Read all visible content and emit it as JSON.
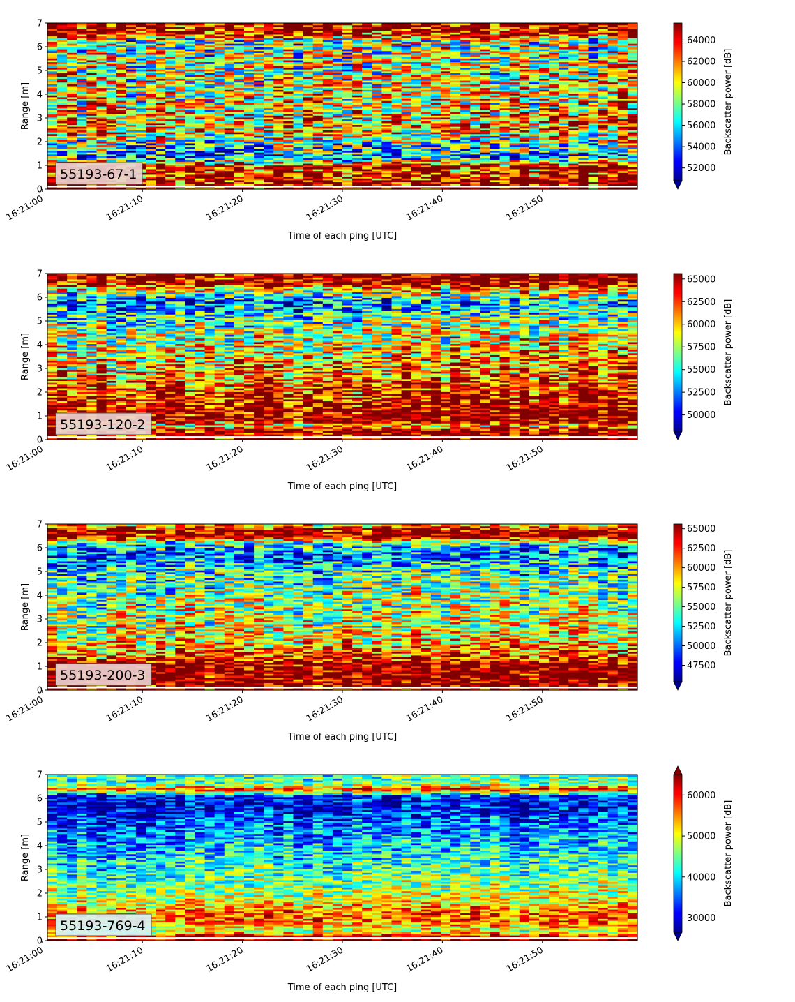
{
  "chart_data": [
    {
      "type": "heatmap",
      "label": "55193-67-1",
      "xlabel": "Time of each ping [UTC]",
      "ylabel": "Range [m]",
      "xticks": [
        "16:21:00",
        "16:21:10",
        "16:21:20",
        "16:21:30",
        "16:21:40",
        "16:21:50"
      ],
      "yticks": [
        "0",
        "1",
        "2",
        "3",
        "4",
        "5",
        "6",
        "7"
      ],
      "ylim": [
        0,
        7
      ],
      "colorbar": {
        "label": "Backscatter power [dB]",
        "vmin": 50800,
        "vmax": 65600,
        "ticks": [
          "52000",
          "54000",
          "56000",
          "58000",
          "60000",
          "62000",
          "64000"
        ],
        "extend": "min"
      },
      "profile": [
        {
          "y": 0.0,
          "v": 0.95
        },
        {
          "y": 0.3,
          "v": 0.98
        },
        {
          "y": 0.6,
          "v": 0.9
        },
        {
          "y": 1.0,
          "v": 0.85
        },
        {
          "y": 1.4,
          "v": 0.25
        },
        {
          "y": 1.8,
          "v": 0.4
        },
        {
          "y": 2.5,
          "v": 0.7
        },
        {
          "y": 3.5,
          "v": 0.62
        },
        {
          "y": 4.5,
          "v": 0.6
        },
        {
          "y": 5.5,
          "v": 0.55
        },
        {
          "y": 6.3,
          "v": 0.5
        },
        {
          "y": 6.5,
          "v": 0.9
        },
        {
          "y": 7.0,
          "v": 1.0
        }
      ],
      "noise": 0.38,
      "trend": 0.0,
      "label_bg": "#ead0d0"
    },
    {
      "type": "heatmap",
      "label": "55193-120-2",
      "xlabel": "Time of each ping [UTC]",
      "ylabel": "Range [m]",
      "xticks": [
        "16:21:00",
        "16:21:10",
        "16:21:20",
        "16:21:30",
        "16:21:40",
        "16:21:50"
      ],
      "yticks": [
        "0",
        "1",
        "2",
        "3",
        "4",
        "5",
        "6",
        "7"
      ],
      "ylim": [
        0,
        7
      ],
      "colorbar": {
        "label": "Backscatter power [dB]",
        "vmin": 48200,
        "vmax": 65600,
        "ticks": [
          "50000",
          "52500",
          "55000",
          "57500",
          "60000",
          "62500",
          "65000"
        ],
        "extend": "min"
      },
      "profile": [
        {
          "y": 0.0,
          "v": 0.95
        },
        {
          "y": 0.4,
          "v": 1.0
        },
        {
          "y": 0.6,
          "v": 0.55
        },
        {
          "y": 0.8,
          "v": 1.0
        },
        {
          "y": 1.3,
          "v": 0.95
        },
        {
          "y": 2.0,
          "v": 0.85
        },
        {
          "y": 3.0,
          "v": 0.7
        },
        {
          "y": 4.0,
          "v": 0.6
        },
        {
          "y": 5.0,
          "v": 0.45
        },
        {
          "y": 5.8,
          "v": 0.25
        },
        {
          "y": 6.3,
          "v": 0.6
        },
        {
          "y": 6.6,
          "v": 0.97
        },
        {
          "y": 7.0,
          "v": 1.0
        }
      ],
      "noise": 0.33,
      "trend": 0.08,
      "label_bg": "#ead0d0"
    },
    {
      "type": "heatmap",
      "label": "55193-200-3",
      "xlabel": "Time of each ping [UTC]",
      "ylabel": "Range [m]",
      "xticks": [
        "16:21:00",
        "16:21:10",
        "16:21:20",
        "16:21:30",
        "16:21:40",
        "16:21:50"
      ],
      "yticks": [
        "0",
        "1",
        "2",
        "3",
        "4",
        "5",
        "6",
        "7"
      ],
      "ylim": [
        0,
        7
      ],
      "colorbar": {
        "label": "Backscatter power [dB]",
        "vmin": 45400,
        "vmax": 65600,
        "ticks": [
          "47500",
          "50000",
          "52500",
          "55000",
          "57500",
          "60000",
          "62500",
          "65000"
        ],
        "extend": "min"
      },
      "profile": [
        {
          "y": 0.0,
          "v": 0.9
        },
        {
          "y": 0.3,
          "v": 1.0
        },
        {
          "y": 1.1,
          "v": 1.0
        },
        {
          "y": 1.4,
          "v": 0.8
        },
        {
          "y": 2.0,
          "v": 0.65
        },
        {
          "y": 3.0,
          "v": 0.55
        },
        {
          "y": 4.0,
          "v": 0.5
        },
        {
          "y": 5.0,
          "v": 0.4
        },
        {
          "y": 5.7,
          "v": 0.2
        },
        {
          "y": 6.2,
          "v": 0.4
        },
        {
          "y": 6.5,
          "v": 1.0
        },
        {
          "y": 6.8,
          "v": 0.9
        },
        {
          "y": 7.0,
          "v": 0.6
        }
      ],
      "noise": 0.3,
      "trend": 0.05,
      "label_bg": "#ead0d0"
    },
    {
      "type": "heatmap",
      "label": "55193-769-4",
      "xlabel": "Time of each ping [UTC]",
      "ylabel": "Range [m]",
      "xticks": [
        "16:21:00",
        "16:21:10",
        "16:21:20",
        "16:21:30",
        "16:21:40",
        "16:21:50"
      ],
      "yticks": [
        "0",
        "1",
        "2",
        "3",
        "4",
        "5",
        "6",
        "7"
      ],
      "ylim": [
        0,
        7
      ],
      "colorbar": {
        "label": "Backscatter power [dB]",
        "vmin": 26500,
        "vmax": 65000,
        "ticks": [
          "30000",
          "40000",
          "50000",
          "60000"
        ],
        "extend": "both"
      },
      "profile": [
        {
          "y": 0.0,
          "v": 0.95
        },
        {
          "y": 0.2,
          "v": 0.9
        },
        {
          "y": 0.4,
          "v": 0.55
        },
        {
          "y": 0.8,
          "v": 0.75
        },
        {
          "y": 1.2,
          "v": 0.75
        },
        {
          "y": 1.6,
          "v": 0.62
        },
        {
          "y": 2.0,
          "v": 0.55
        },
        {
          "y": 3.0,
          "v": 0.42
        },
        {
          "y": 4.0,
          "v": 0.32
        },
        {
          "y": 5.0,
          "v": 0.2
        },
        {
          "y": 5.7,
          "v": 0.1
        },
        {
          "y": 6.1,
          "v": 0.15
        },
        {
          "y": 6.4,
          "v": 0.85
        },
        {
          "y": 6.6,
          "v": 0.45
        },
        {
          "y": 7.0,
          "v": 0.45
        }
      ],
      "noise": 0.22,
      "trend": 0.05,
      "label_bg": "#d8f1f6"
    }
  ]
}
